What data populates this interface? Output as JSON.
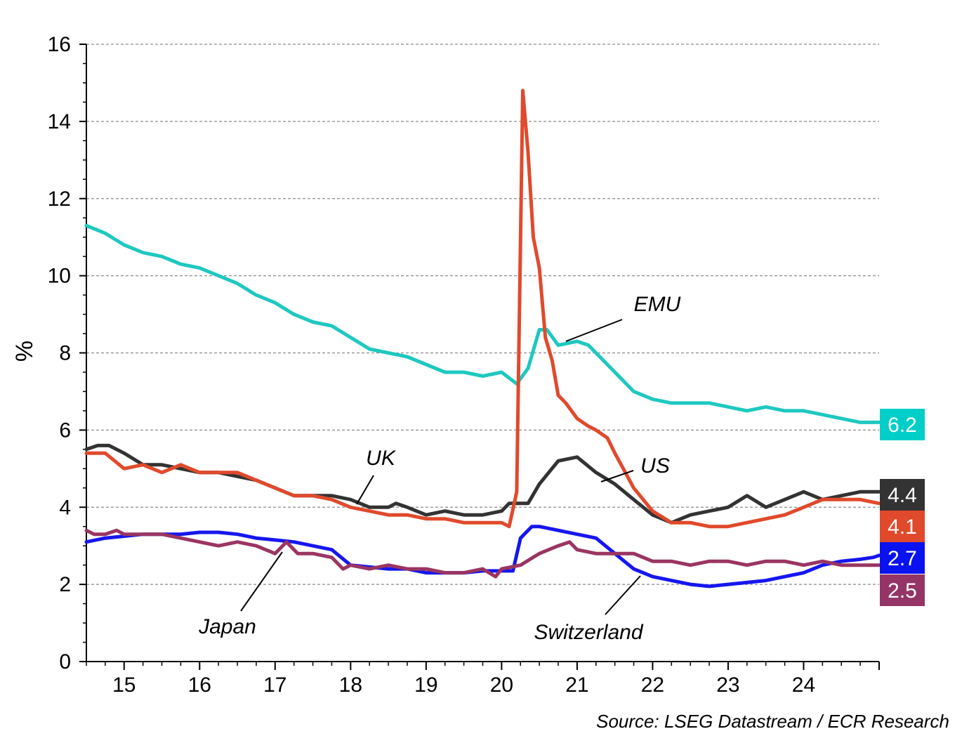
{
  "chart_data": {
    "type": "line",
    "title": "",
    "xlabel": "",
    "ylabel": "%",
    "source": "Source: LSEG Datastream / ECR Research",
    "xlim": [
      2014.5,
      2025.0
    ],
    "ylim": [
      0,
      16
    ],
    "y_ticks": [
      "0",
      "2",
      "4",
      "6",
      "8",
      "10",
      "12",
      "14",
      "16"
    ],
    "x_tick_labels": [
      "15",
      "16",
      "17",
      "18",
      "19",
      "20",
      "21",
      "22",
      "23",
      "24"
    ],
    "grid": "horizontal dashed",
    "series": [
      {
        "name": "EMU",
        "color": "#1ec8c0",
        "end_label": "6.2",
        "end_label_color": "#00cec8",
        "points": [
          [
            2014.5,
            11.3
          ],
          [
            2014.75,
            11.1
          ],
          [
            2015.0,
            10.8
          ],
          [
            2015.25,
            10.6
          ],
          [
            2015.5,
            10.5
          ],
          [
            2015.75,
            10.3
          ],
          [
            2016.0,
            10.2
          ],
          [
            2016.25,
            10.0
          ],
          [
            2016.5,
            9.8
          ],
          [
            2016.75,
            9.5
          ],
          [
            2017.0,
            9.3
          ],
          [
            2017.25,
            9.0
          ],
          [
            2017.5,
            8.8
          ],
          [
            2017.75,
            8.7
          ],
          [
            2018.0,
            8.4
          ],
          [
            2018.25,
            8.1
          ],
          [
            2018.5,
            8.0
          ],
          [
            2018.75,
            7.9
          ],
          [
            2019.0,
            7.7
          ],
          [
            2019.25,
            7.5
          ],
          [
            2019.5,
            7.5
          ],
          [
            2019.75,
            7.4
          ],
          [
            2020.0,
            7.5
          ],
          [
            2020.2,
            7.2
          ],
          [
            2020.35,
            7.6
          ],
          [
            2020.5,
            8.6
          ],
          [
            2020.6,
            8.6
          ],
          [
            2020.75,
            8.2
          ],
          [
            2021.0,
            8.3
          ],
          [
            2021.15,
            8.2
          ],
          [
            2021.25,
            8.0
          ],
          [
            2021.5,
            7.5
          ],
          [
            2021.75,
            7.0
          ],
          [
            2022.0,
            6.8
          ],
          [
            2022.25,
            6.7
          ],
          [
            2022.5,
            6.7
          ],
          [
            2022.75,
            6.7
          ],
          [
            2023.0,
            6.6
          ],
          [
            2023.25,
            6.5
          ],
          [
            2023.5,
            6.6
          ],
          [
            2023.75,
            6.5
          ],
          [
            2024.0,
            6.5
          ],
          [
            2024.25,
            6.4
          ],
          [
            2024.5,
            6.3
          ],
          [
            2024.75,
            6.2
          ],
          [
            2025.0,
            6.2
          ]
        ]
      },
      {
        "name": "UK",
        "color": "#333333",
        "end_label": "4.4",
        "end_label_color": "#333333",
        "points": [
          [
            2014.5,
            5.5
          ],
          [
            2014.65,
            5.6
          ],
          [
            2014.8,
            5.6
          ],
          [
            2015.0,
            5.4
          ],
          [
            2015.25,
            5.1
          ],
          [
            2015.5,
            5.1
          ],
          [
            2015.75,
            5.0
          ],
          [
            2016.0,
            4.9
          ],
          [
            2016.25,
            4.9
          ],
          [
            2016.5,
            4.8
          ],
          [
            2016.75,
            4.7
          ],
          [
            2017.0,
            4.5
          ],
          [
            2017.25,
            4.3
          ],
          [
            2017.5,
            4.3
          ],
          [
            2017.75,
            4.3
          ],
          [
            2018.0,
            4.2
          ],
          [
            2018.25,
            4.0
          ],
          [
            2018.5,
            4.0
          ],
          [
            2018.6,
            4.1
          ],
          [
            2018.75,
            4.0
          ],
          [
            2019.0,
            3.8
          ],
          [
            2019.25,
            3.9
          ],
          [
            2019.5,
            3.8
          ],
          [
            2019.75,
            3.8
          ],
          [
            2020.0,
            3.9
          ],
          [
            2020.1,
            4.1
          ],
          [
            2020.35,
            4.1
          ],
          [
            2020.5,
            4.6
          ],
          [
            2020.75,
            5.2
          ],
          [
            2021.0,
            5.3
          ],
          [
            2021.25,
            4.9
          ],
          [
            2021.5,
            4.6
          ],
          [
            2021.75,
            4.2
          ],
          [
            2022.0,
            3.8
          ],
          [
            2022.25,
            3.6
          ],
          [
            2022.5,
            3.8
          ],
          [
            2022.75,
            3.9
          ],
          [
            2023.0,
            4.0
          ],
          [
            2023.25,
            4.3
          ],
          [
            2023.5,
            4.0
          ],
          [
            2023.75,
            4.2
          ],
          [
            2024.0,
            4.4
          ],
          [
            2024.25,
            4.2
          ],
          [
            2024.5,
            4.3
          ],
          [
            2024.75,
            4.4
          ],
          [
            2025.0,
            4.4
          ]
        ]
      },
      {
        "name": "US",
        "color": "#e04a2c",
        "end_label": "4.1",
        "end_label_color": "#e0492b",
        "points": [
          [
            2014.5,
            5.4
          ],
          [
            2014.75,
            5.4
          ],
          [
            2015.0,
            5.0
          ],
          [
            2015.25,
            5.1
          ],
          [
            2015.5,
            4.9
          ],
          [
            2015.75,
            5.1
          ],
          [
            2016.0,
            4.9
          ],
          [
            2016.25,
            4.9
          ],
          [
            2016.5,
            4.9
          ],
          [
            2016.75,
            4.7
          ],
          [
            2017.0,
            4.5
          ],
          [
            2017.25,
            4.3
          ],
          [
            2017.5,
            4.3
          ],
          [
            2017.75,
            4.2
          ],
          [
            2018.0,
            4.0
          ],
          [
            2018.25,
            3.9
          ],
          [
            2018.5,
            3.8
          ],
          [
            2018.75,
            3.8
          ],
          [
            2019.0,
            3.7
          ],
          [
            2019.25,
            3.7
          ],
          [
            2019.5,
            3.6
          ],
          [
            2019.75,
            3.6
          ],
          [
            2020.0,
            3.6
          ],
          [
            2020.1,
            3.5
          ],
          [
            2020.2,
            4.4
          ],
          [
            2020.28,
            14.8
          ],
          [
            2020.35,
            13.2
          ],
          [
            2020.42,
            11.0
          ],
          [
            2020.5,
            10.2
          ],
          [
            2020.58,
            8.4
          ],
          [
            2020.67,
            7.8
          ],
          [
            2020.75,
            6.9
          ],
          [
            2020.85,
            6.7
          ],
          [
            2021.0,
            6.3
          ],
          [
            2021.15,
            6.1
          ],
          [
            2021.25,
            6.0
          ],
          [
            2021.4,
            5.8
          ],
          [
            2021.5,
            5.4
          ],
          [
            2021.75,
            4.5
          ],
          [
            2022.0,
            3.9
          ],
          [
            2022.25,
            3.6
          ],
          [
            2022.5,
            3.6
          ],
          [
            2022.75,
            3.5
          ],
          [
            2023.0,
            3.5
          ],
          [
            2023.25,
            3.6
          ],
          [
            2023.5,
            3.7
          ],
          [
            2023.75,
            3.8
          ],
          [
            2024.0,
            4.0
          ],
          [
            2024.25,
            4.2
          ],
          [
            2024.5,
            4.2
          ],
          [
            2024.75,
            4.2
          ],
          [
            2025.0,
            4.1
          ]
        ]
      },
      {
        "name": "Switzerland",
        "color": "#1616ee",
        "end_label": "2.7",
        "end_label_color": "#0a12f0",
        "points": [
          [
            2014.5,
            3.1
          ],
          [
            2014.75,
            3.2
          ],
          [
            2015.0,
            3.25
          ],
          [
            2015.25,
            3.3
          ],
          [
            2015.5,
            3.3
          ],
          [
            2015.75,
            3.3
          ],
          [
            2016.0,
            3.35
          ],
          [
            2016.25,
            3.35
          ],
          [
            2016.5,
            3.3
          ],
          [
            2016.75,
            3.2
          ],
          [
            2017.0,
            3.15
          ],
          [
            2017.25,
            3.1
          ],
          [
            2017.5,
            3.0
          ],
          [
            2017.75,
            2.9
          ],
          [
            2018.0,
            2.5
          ],
          [
            2018.25,
            2.45
          ],
          [
            2018.5,
            2.4
          ],
          [
            2018.75,
            2.4
          ],
          [
            2019.0,
            2.3
          ],
          [
            2019.25,
            2.3
          ],
          [
            2019.5,
            2.3
          ],
          [
            2019.75,
            2.35
          ],
          [
            2020.0,
            2.35
          ],
          [
            2020.15,
            2.35
          ],
          [
            2020.25,
            3.2
          ],
          [
            2020.4,
            3.5
          ],
          [
            2020.5,
            3.5
          ],
          [
            2020.75,
            3.4
          ],
          [
            2021.0,
            3.3
          ],
          [
            2021.25,
            3.2
          ],
          [
            2021.5,
            2.8
          ],
          [
            2021.75,
            2.4
          ],
          [
            2022.0,
            2.2
          ],
          [
            2022.25,
            2.1
          ],
          [
            2022.5,
            2.0
          ],
          [
            2022.75,
            1.95
          ],
          [
            2023.0,
            2.0
          ],
          [
            2023.25,
            2.05
          ],
          [
            2023.5,
            2.1
          ],
          [
            2023.75,
            2.2
          ],
          [
            2024.0,
            2.3
          ],
          [
            2024.25,
            2.5
          ],
          [
            2024.5,
            2.6
          ],
          [
            2024.75,
            2.65
          ],
          [
            2024.92,
            2.7
          ],
          [
            2025.0,
            2.75
          ]
        ]
      },
      {
        "name": "Japan",
        "color": "#9a3562",
        "end_label": "2.5",
        "end_label_color": "#953466",
        "points": [
          [
            2014.5,
            3.4
          ],
          [
            2014.6,
            3.3
          ],
          [
            2014.75,
            3.3
          ],
          [
            2014.9,
            3.4
          ],
          [
            2015.0,
            3.3
          ],
          [
            2015.25,
            3.3
          ],
          [
            2015.5,
            3.3
          ],
          [
            2015.75,
            3.2
          ],
          [
            2016.0,
            3.1
          ],
          [
            2016.25,
            3.0
          ],
          [
            2016.5,
            3.1
          ],
          [
            2016.75,
            3.0
          ],
          [
            2017.0,
            2.8
          ],
          [
            2017.15,
            3.1
          ],
          [
            2017.3,
            2.8
          ],
          [
            2017.5,
            2.8
          ],
          [
            2017.75,
            2.7
          ],
          [
            2017.9,
            2.4
          ],
          [
            2018.0,
            2.5
          ],
          [
            2018.25,
            2.4
          ],
          [
            2018.5,
            2.5
          ],
          [
            2018.75,
            2.4
          ],
          [
            2019.0,
            2.4
          ],
          [
            2019.25,
            2.3
          ],
          [
            2019.5,
            2.3
          ],
          [
            2019.75,
            2.4
          ],
          [
            2019.92,
            2.2
          ],
          [
            2020.0,
            2.4
          ],
          [
            2020.25,
            2.5
          ],
          [
            2020.5,
            2.8
          ],
          [
            2020.75,
            3.0
          ],
          [
            2020.9,
            3.1
          ],
          [
            2021.0,
            2.9
          ],
          [
            2021.25,
            2.8
          ],
          [
            2021.5,
            2.8
          ],
          [
            2021.75,
            2.8
          ],
          [
            2022.0,
            2.6
          ],
          [
            2022.25,
            2.6
          ],
          [
            2022.5,
            2.5
          ],
          [
            2022.75,
            2.6
          ],
          [
            2023.0,
            2.6
          ],
          [
            2023.25,
            2.5
          ],
          [
            2023.5,
            2.6
          ],
          [
            2023.75,
            2.6
          ],
          [
            2024.0,
            2.5
          ],
          [
            2024.25,
            2.6
          ],
          [
            2024.5,
            2.5
          ],
          [
            2024.75,
            2.5
          ],
          [
            2025.0,
            2.5
          ]
        ]
      }
    ],
    "annotations": [
      "EMU",
      "UK",
      "US",
      "Japan",
      "Switzerland"
    ]
  }
}
